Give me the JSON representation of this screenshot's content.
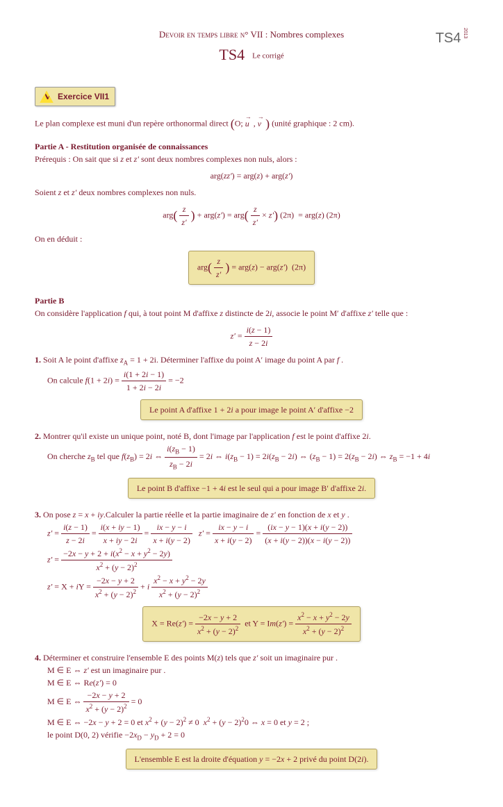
{
  "header": {
    "line1_pre": "Devoir en temps libre n°",
    "line1_num": "VII :",
    "line1_title": "Nombres complexes",
    "line2_main": "TS4",
    "line2_sub": "Le corrigé",
    "logo_text": "TS4",
    "logo_year": "2013"
  },
  "exercise_label": "Exercice VII1",
  "intro": "Le plan complexe est muni d'un repère orthonormal direct (O; u⃗ , v⃗ ) (unité graphique : 2 cm).",
  "partieA": {
    "title": "Partie A    -    Restitution organisée de connaissances",
    "prereq": "Prérequis : On sait que si z et z′ sont deux nombres complexes non nuls, alors :",
    "eq1": "arg(zz′) = arg(z) + arg(z′)",
    "soient": "Soient z et z′ deux nombres complexes non nuls.",
    "deduit": "On en déduit :"
  },
  "partieB": {
    "title": "Partie B",
    "intro": "On considère l'application f qui, à tout point M d'affixe z distincte de 2i, associe le point M′ d'affixe z′ telle que :",
    "q1_text": "Soit A le point d'affixe zA = 1 + 2i. Déterminer l'affixe du point A′ image du point A par f .",
    "q1_calc": "On calcule f(1 + 2i) = ",
    "q1_ans": "Le point A d'affixe 1 + 2i a pour image le point A′ d'affixe −2",
    "q2_text": "Montrer qu'il existe un unique point, noté B, dont l'image par l'application f est le point d'affixe 2i.",
    "q2_calc": "On cherche zB tel que f(zB) = 2i ⇔ ",
    "q2_chain": " = 2i ⇔ i(zB − 1) = 2i(zB − 2i) ⇔ (zB − 1) = 2(zB − 2i) ⇔ zB = −1 + 4i",
    "q2_ans": "Le point B d'affixe −1 + 4i est le seul qui a pour image B′ d'affixe 2i.",
    "q3_text": "On pose z = x + iy. Calculer la partie réelle et la partie imaginaire de z′ en fonction de x et y .",
    "q4_text": "Déterminer et construire l'ensemble E des points M(z) tels que z′ soit un imaginaire pur .",
    "q4_l1": "M ∈ E ⇔ z′ est un imaginaire pur .",
    "q4_l2": "M ∈ E ⇔ Re(z′) = 0",
    "q4_l4": "M ∈ E ⇔ −2x − y + 2 = 0 et x² + (y − 2)² ≠ 0  x² + (y − 2)²0 ⇔ x = 0 et y = 2 ;",
    "q4_l5": "le point D(0, 2) vérifie −2xD − yD + 2 = 0",
    "q4_ans": "L'ensemble E est la droite d'équation y = −2x + 2 privé du point D(2i)."
  },
  "colors": {
    "text": "#7a1a2e",
    "box_bg": "#f0e5a8",
    "box_border": "#b0a060"
  }
}
